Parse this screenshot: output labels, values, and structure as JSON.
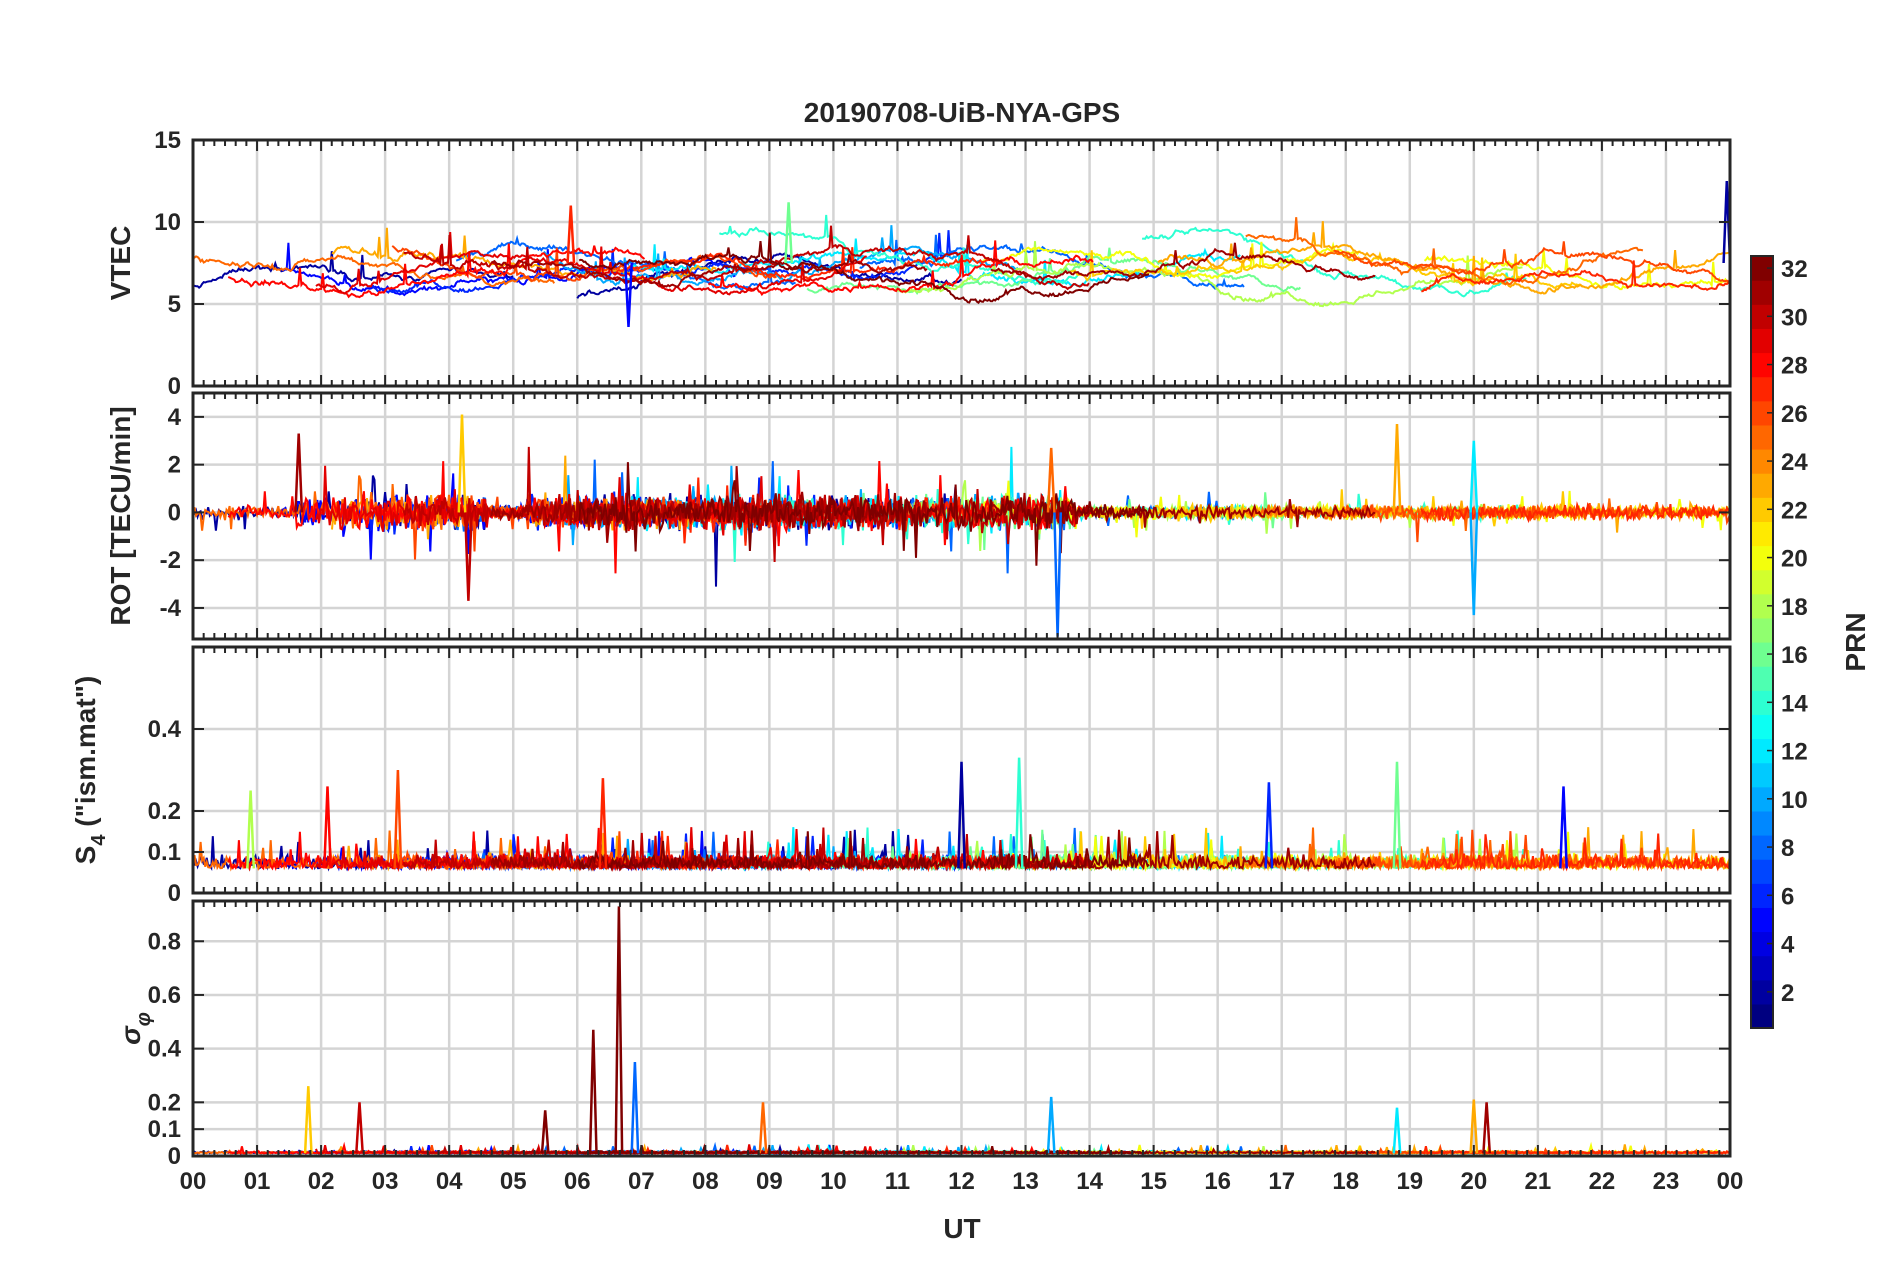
{
  "chart_data": {
    "type": "line",
    "title": "20190708-UiB-NYA-GPS",
    "xlabel": "UT",
    "x_tick_labels": [
      "00",
      "01",
      "02",
      "03",
      "04",
      "05",
      "06",
      "07",
      "08",
      "09",
      "10",
      "11",
      "12",
      "13",
      "14",
      "15",
      "16",
      "17",
      "18",
      "19",
      "20",
      "21",
      "22",
      "23",
      "00"
    ],
    "xlim": [
      0,
      24
    ],
    "grid": true,
    "panels": [
      {
        "name": "vtec",
        "ylabel": "VTEC",
        "ylim": [
          0,
          15
        ],
        "y_ticks": [
          0,
          5,
          10,
          15
        ],
        "y_tick_labels": [
          "0",
          "5",
          "10",
          "15"
        ],
        "typical_range": [
          4.5,
          12.5
        ],
        "peaks": [
          {
            "x": 23.95,
            "y": 12.5
          },
          {
            "x": 9.3,
            "y": 11.2
          },
          {
            "x": 5.9,
            "y": 11.0
          },
          {
            "x": 6.8,
            "y": 3.6
          }
        ]
      },
      {
        "name": "rot",
        "ylabel": "ROT [TECU/min]",
        "ylim": [
          -5.3,
          5
        ],
        "y_ticks": [
          -4,
          -2,
          0,
          2,
          4
        ],
        "y_tick_labels": [
          "-4",
          "-2",
          "0",
          "2",
          "4"
        ],
        "peaks": [
          {
            "x": 13.5,
            "y": -5.2
          },
          {
            "x": 4.2,
            "y": 4.1
          },
          {
            "x": 4.3,
            "y": -3.7
          },
          {
            "x": 20.0,
            "y": -4.3
          },
          {
            "x": 18.8,
            "y": 3.7
          },
          {
            "x": 1.65,
            "y": 3.3
          },
          {
            "x": 20.0,
            "y": 3.0
          },
          {
            "x": 13.4,
            "y": 2.7
          }
        ]
      },
      {
        "name": "s4",
        "ylabel": "S4 (\"ism.mat\")",
        "ylabel_parts": [
          "S",
          "4",
          " (\"ism.mat\")"
        ],
        "ylim": [
          0,
          0.6
        ],
        "y_ticks": [
          0,
          0.1,
          0.2,
          0.4
        ],
        "y_tick_labels": [
          "0",
          "0.1",
          "0.2",
          "0.4"
        ],
        "baseline": 0.06,
        "peaks": [
          {
            "x": 12.9,
            "y": 0.33
          },
          {
            "x": 3.2,
            "y": 0.3
          },
          {
            "x": 12.0,
            "y": 0.32
          },
          {
            "x": 18.8,
            "y": 0.32
          },
          {
            "x": 6.4,
            "y": 0.28
          },
          {
            "x": 21.4,
            "y": 0.26
          },
          {
            "x": 0.9,
            "y": 0.25
          },
          {
            "x": 2.1,
            "y": 0.26
          },
          {
            "x": 16.8,
            "y": 0.27
          }
        ]
      },
      {
        "name": "sigma_phi",
        "ylabel": "σφ",
        "ylabel_parts": [
          "σ",
          "φ"
        ],
        "ylim": [
          0,
          0.95
        ],
        "y_ticks": [
          0,
          0.1,
          0.2,
          0.4,
          0.6,
          0.8
        ],
        "y_tick_labels": [
          "0",
          "0.1",
          "0.2",
          "0.4",
          "0.6",
          "0.8"
        ],
        "baseline": 0.01,
        "peaks": [
          {
            "x": 6.65,
            "y": 0.93
          },
          {
            "x": 6.25,
            "y": 0.47
          },
          {
            "x": 6.9,
            "y": 0.35
          },
          {
            "x": 1.8,
            "y": 0.26
          },
          {
            "x": 2.6,
            "y": 0.2
          },
          {
            "x": 13.4,
            "y": 0.22
          },
          {
            "x": 20.0,
            "y": 0.21
          },
          {
            "x": 20.2,
            "y": 0.2
          },
          {
            "x": 18.8,
            "y": 0.18
          },
          {
            "x": 8.9,
            "y": 0.2
          },
          {
            "x": 5.5,
            "y": 0.17
          }
        ]
      }
    ],
    "colorbar": {
      "label": "PRN",
      "colormap": "jet",
      "range": [
        1,
        32
      ],
      "levels": 32,
      "tick_labels": [
        "2",
        "4",
        "6",
        "8",
        "10",
        "12",
        "14",
        "16",
        "18",
        "20",
        "22",
        "24",
        "26",
        "28",
        "30",
        "32"
      ]
    }
  }
}
